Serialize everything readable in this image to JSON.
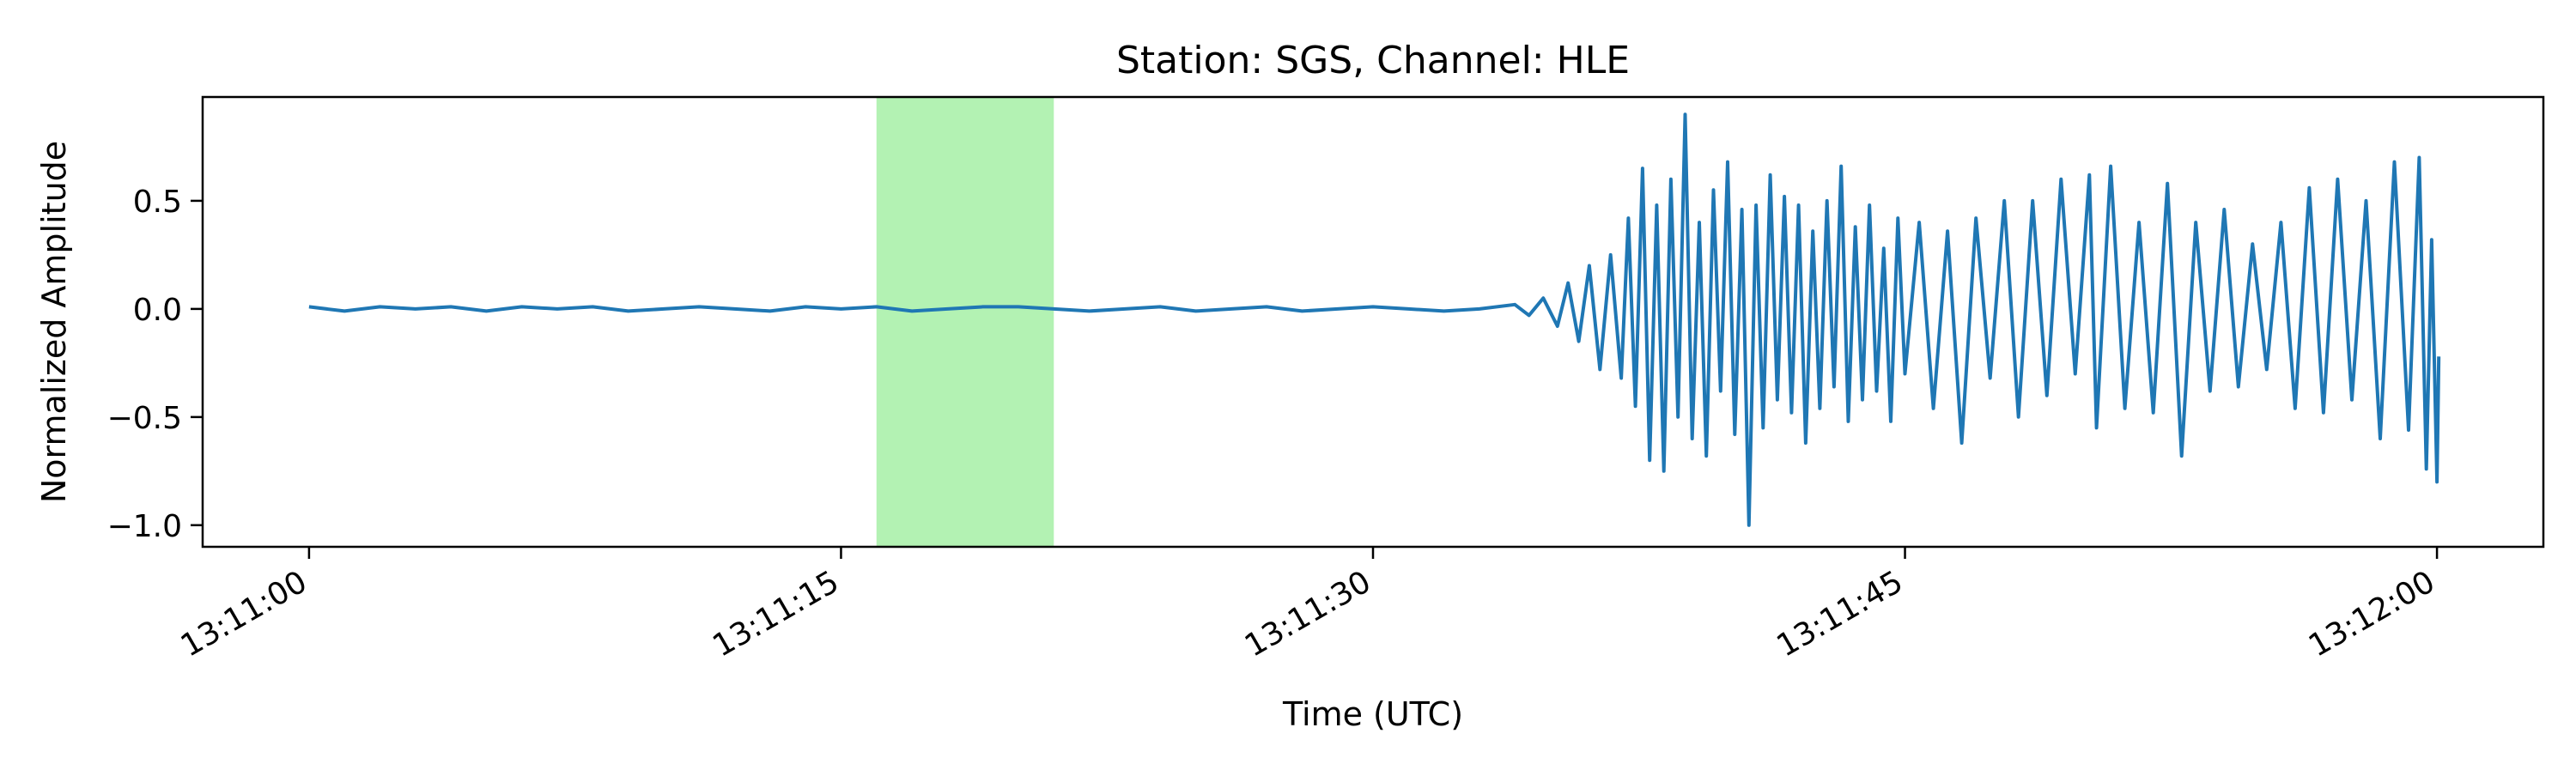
{
  "chart_data": {
    "type": "line",
    "title": "Station: SGS, Channel: HLE",
    "xlabel": "Time (UTC)",
    "ylabel": "Normalized Amplitude",
    "x_range": [
      "13:10:57",
      "13:12:03"
    ],
    "ylim": [
      -1.1,
      0.98
    ],
    "x_ticks": [
      {
        "time": "13:11:00",
        "label": "13:11:00"
      },
      {
        "time": "13:11:15",
        "label": "13:11:15"
      },
      {
        "time": "13:11:30",
        "label": "13:11:30"
      },
      {
        "time": "13:11:45",
        "label": "13:11:45"
      },
      {
        "time": "13:12:00",
        "label": "13:12:00"
      }
    ],
    "y_ticks": [
      {
        "value": 0.5,
        "label": "0.5"
      },
      {
        "value": 0.0,
        "label": "0.0"
      },
      {
        "value": -0.5,
        "label": "−0.5"
      },
      {
        "value": -1.0,
        "label": "−1.0"
      }
    ],
    "highlight_window": {
      "start": "13:11:16",
      "end": "13:11:21",
      "color": "#b3f2b3"
    },
    "series": [
      {
        "color": "#1f77b4",
        "points": [
          [
            "13:11:00.0",
            0.01
          ],
          [
            "13:11:01.0",
            -0.01
          ],
          [
            "13:11:02.0",
            0.01
          ],
          [
            "13:11:03.0",
            0.0
          ],
          [
            "13:11:04.0",
            0.01
          ],
          [
            "13:11:05.0",
            -0.01
          ],
          [
            "13:11:06.0",
            0.01
          ],
          [
            "13:11:07.0",
            0.0
          ],
          [
            "13:11:08.0",
            0.01
          ],
          [
            "13:11:09.0",
            -0.01
          ],
          [
            "13:11:10.0",
            0.0
          ],
          [
            "13:11:11.0",
            0.01
          ],
          [
            "13:11:12.0",
            0.0
          ],
          [
            "13:11:13.0",
            -0.01
          ],
          [
            "13:11:14.0",
            0.01
          ],
          [
            "13:11:15.0",
            0.0
          ],
          [
            "13:11:16.0",
            0.01
          ],
          [
            "13:11:17.0",
            -0.01
          ],
          [
            "13:11:18.0",
            0.0
          ],
          [
            "13:11:19.0",
            0.01
          ],
          [
            "13:11:20.0",
            0.01
          ],
          [
            "13:11:21.0",
            0.0
          ],
          [
            "13:11:22.0",
            -0.01
          ],
          [
            "13:11:23.0",
            0.0
          ],
          [
            "13:11:24.0",
            0.01
          ],
          [
            "13:11:25.0",
            -0.01
          ],
          [
            "13:11:26.0",
            0.0
          ],
          [
            "13:11:27.0",
            0.01
          ],
          [
            "13:11:28.0",
            -0.01
          ],
          [
            "13:11:29.0",
            0.0
          ],
          [
            "13:11:30.0",
            0.01
          ],
          [
            "13:11:31.0",
            0.0
          ],
          [
            "13:11:32.0",
            -0.01
          ],
          [
            "13:11:33.0",
            0.0
          ],
          [
            "13:11:34.0",
            0.02
          ],
          [
            "13:11:34.4",
            -0.03
          ],
          [
            "13:11:34.8",
            0.05
          ],
          [
            "13:11:35.2",
            -0.08
          ],
          [
            "13:11:35.5",
            0.12
          ],
          [
            "13:11:35.8",
            -0.15
          ],
          [
            "13:11:36.1",
            0.2
          ],
          [
            "13:11:36.4",
            -0.28
          ],
          [
            "13:11:36.7",
            0.25
          ],
          [
            "13:11:37.0",
            -0.32
          ],
          [
            "13:11:37.2",
            0.42
          ],
          [
            "13:11:37.4",
            -0.45
          ],
          [
            "13:11:37.6",
            0.65
          ],
          [
            "13:11:37.8",
            -0.7
          ],
          [
            "13:11:38.0",
            0.48
          ],
          [
            "13:11:38.2",
            -0.75
          ],
          [
            "13:11:38.4",
            0.6
          ],
          [
            "13:11:38.6",
            -0.5
          ],
          [
            "13:11:38.8",
            0.9
          ],
          [
            "13:11:39.0",
            -0.6
          ],
          [
            "13:11:39.2",
            0.4
          ],
          [
            "13:11:39.4",
            -0.68
          ],
          [
            "13:11:39.6",
            0.55
          ],
          [
            "13:11:39.8",
            -0.38
          ],
          [
            "13:11:40.0",
            0.68
          ],
          [
            "13:11:40.2",
            -0.58
          ],
          [
            "13:11:40.4",
            0.46
          ],
          [
            "13:11:40.6",
            -1.0
          ],
          [
            "13:11:40.8",
            0.48
          ],
          [
            "13:11:41.0",
            -0.55
          ],
          [
            "13:11:41.2",
            0.62
          ],
          [
            "13:11:41.4",
            -0.42
          ],
          [
            "13:11:41.6",
            0.52
          ],
          [
            "13:11:41.8",
            -0.48
          ],
          [
            "13:11:42.0",
            0.48
          ],
          [
            "13:11:42.2",
            -0.62
          ],
          [
            "13:11:42.4",
            0.36
          ],
          [
            "13:11:42.6",
            -0.46
          ],
          [
            "13:11:42.8",
            0.5
          ],
          [
            "13:11:43.0",
            -0.36
          ],
          [
            "13:11:43.2",
            0.66
          ],
          [
            "13:11:43.4",
            -0.52
          ],
          [
            "13:11:43.6",
            0.38
          ],
          [
            "13:11:43.8",
            -0.42
          ],
          [
            "13:11:44.0",
            0.48
          ],
          [
            "13:11:44.2",
            -0.38
          ],
          [
            "13:11:44.4",
            0.28
          ],
          [
            "13:11:44.6",
            -0.52
          ],
          [
            "13:11:44.8",
            0.42
          ],
          [
            "13:11:45.0",
            -0.3
          ],
          [
            "13:11:45.4",
            0.4
          ],
          [
            "13:11:45.8",
            -0.46
          ],
          [
            "13:11:46.2",
            0.36
          ],
          [
            "13:11:46.6",
            -0.62
          ],
          [
            "13:11:47.0",
            0.42
          ],
          [
            "13:11:47.4",
            -0.32
          ],
          [
            "13:11:47.8",
            0.5
          ],
          [
            "13:11:48.2",
            -0.5
          ],
          [
            "13:11:48.6",
            0.5
          ],
          [
            "13:11:49.0",
            -0.4
          ],
          [
            "13:11:49.4",
            0.6
          ],
          [
            "13:11:49.8",
            -0.3
          ],
          [
            "13:11:50.2",
            0.62
          ],
          [
            "13:11:50.4",
            -0.55
          ],
          [
            "13:11:50.8",
            0.66
          ],
          [
            "13:11:51.2",
            -0.46
          ],
          [
            "13:11:51.6",
            0.4
          ],
          [
            "13:11:52.0",
            -0.48
          ],
          [
            "13:11:52.4",
            0.58
          ],
          [
            "13:11:52.8",
            -0.68
          ],
          [
            "13:11:53.2",
            0.4
          ],
          [
            "13:11:53.6",
            -0.38
          ],
          [
            "13:11:54.0",
            0.46
          ],
          [
            "13:11:54.4",
            -0.36
          ],
          [
            "13:11:54.8",
            0.3
          ],
          [
            "13:11:55.2",
            -0.28
          ],
          [
            "13:11:55.6",
            0.4
          ],
          [
            "13:11:56.0",
            -0.46
          ],
          [
            "13:11:56.4",
            0.56
          ],
          [
            "13:11:56.8",
            -0.48
          ],
          [
            "13:11:57.2",
            0.6
          ],
          [
            "13:11:57.6",
            -0.42
          ],
          [
            "13:11:58.0",
            0.5
          ],
          [
            "13:11:58.4",
            -0.6
          ],
          [
            "13:11:58.8",
            0.68
          ],
          [
            "13:11:59.2",
            -0.56
          ],
          [
            "13:11:59.5",
            0.7
          ],
          [
            "13:11:59.7",
            -0.74
          ],
          [
            "13:11:59.85",
            0.32
          ],
          [
            "13:12:00.0",
            -0.8
          ],
          [
            "13:12:00.05",
            -0.22
          ]
        ]
      }
    ]
  }
}
